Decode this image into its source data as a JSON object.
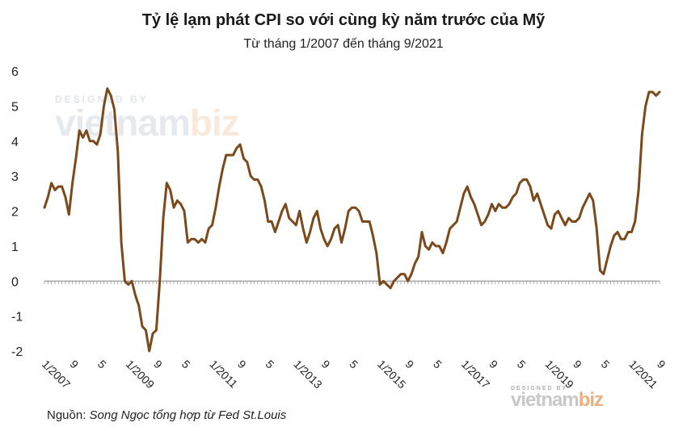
{
  "chart_data": {
    "type": "line",
    "title": "Tỷ lệ lạm phát CPI so với cùng kỳ năm trước của Mỹ",
    "subtitle": "Từ tháng 1/2007 đến tháng 9/2021",
    "ylim": [
      -2,
      6
    ],
    "yticks": [
      "6",
      "5",
      "4",
      "3",
      "2",
      "1",
      "0",
      "-1",
      "-2"
    ],
    "xticks": [
      {
        "label": "1/2007",
        "index": 0
      },
      {
        "label": "9",
        "index": 8
      },
      {
        "label": "5",
        "index": 16
      },
      {
        "label": "1/2009",
        "index": 24
      },
      {
        "label": "9",
        "index": 32
      },
      {
        "label": "5",
        "index": 40
      },
      {
        "label": "1/2011",
        "index": 48
      },
      {
        "label": "9",
        "index": 56
      },
      {
        "label": "5",
        "index": 64
      },
      {
        "label": "1/2013",
        "index": 72
      },
      {
        "label": "9",
        "index": 80
      },
      {
        "label": "5",
        "index": 88
      },
      {
        "label": "1/2015",
        "index": 96
      },
      {
        "label": "9",
        "index": 104
      },
      {
        "label": "5",
        "index": 112
      },
      {
        "label": "1/2017",
        "index": 120
      },
      {
        "label": "9",
        "index": 128
      },
      {
        "label": "5",
        "index": 136
      },
      {
        "label": "1/2019",
        "index": 144
      },
      {
        "label": "9",
        "index": 152
      },
      {
        "label": "5",
        "index": 160
      },
      {
        "label": "1/2021",
        "index": 168
      },
      {
        "label": "9",
        "index": 176
      }
    ],
    "line_color": "#7b4a1c",
    "series": [
      {
        "values": [
          2.1,
          2.4,
          2.8,
          2.6,
          2.7,
          2.7,
          2.4,
          1.9,
          2.8,
          3.5,
          4.3,
          4.1,
          4.3,
          4.0,
          4.0,
          3.9,
          4.2,
          5.0,
          5.5,
          5.3,
          4.9,
          3.7,
          1.1,
          0.0,
          -0.1,
          0.0,
          -0.4,
          -0.7,
          -1.3,
          -1.4,
          -2.0,
          -1.5,
          -1.4,
          0.0,
          1.8,
          2.8,
          2.6,
          2.1,
          2.3,
          2.2,
          2.0,
          1.1,
          1.2,
          1.2,
          1.1,
          1.2,
          1.1,
          1.5,
          1.6,
          2.1,
          2.7,
          3.2,
          3.6,
          3.6,
          3.6,
          3.8,
          3.9,
          3.5,
          3.4,
          3.0,
          2.9,
          2.9,
          2.7,
          2.3,
          1.7,
          1.7,
          1.4,
          1.7,
          2.0,
          2.2,
          1.8,
          1.7,
          1.6,
          2.0,
          1.5,
          1.1,
          1.4,
          1.8,
          2.0,
          1.5,
          1.2,
          1.0,
          1.2,
          1.5,
          1.6,
          1.1,
          1.5,
          2.0,
          2.1,
          2.1,
          2.0,
          1.7,
          1.7,
          1.7,
          1.3,
          0.8,
          -0.1,
          0.0,
          -0.1,
          -0.2,
          0.0,
          0.1,
          0.2,
          0.2,
          0.0,
          0.2,
          0.5,
          0.7,
          1.4,
          1.0,
          0.9,
          1.1,
          1.0,
          1.0,
          0.8,
          1.1,
          1.5,
          1.6,
          1.7,
          2.1,
          2.5,
          2.7,
          2.4,
          2.2,
          1.9,
          1.6,
          1.7,
          1.9,
          2.2,
          2.0,
          2.2,
          2.1,
          2.1,
          2.2,
          2.4,
          2.5,
          2.8,
          2.9,
          2.9,
          2.7,
          2.3,
          2.5,
          2.2,
          1.9,
          1.6,
          1.5,
          1.9,
          2.0,
          1.8,
          1.6,
          1.8,
          1.7,
          1.7,
          1.8,
          2.1,
          2.3,
          2.5,
          2.3,
          1.5,
          0.3,
          0.2,
          0.6,
          1.0,
          1.3,
          1.4,
          1.2,
          1.2,
          1.4,
          1.4,
          1.7,
          2.6,
          4.2,
          5.0,
          5.4,
          5.4,
          5.3,
          5.4
        ]
      }
    ]
  },
  "source": {
    "prefix": "Nguồn:",
    "text": "Song Ngọc tổng hợp từ Fed St.Louis"
  },
  "watermark": {
    "small": "DESIGNED BY",
    "brand_main": "vietnam",
    "brand_accent": "biz"
  }
}
